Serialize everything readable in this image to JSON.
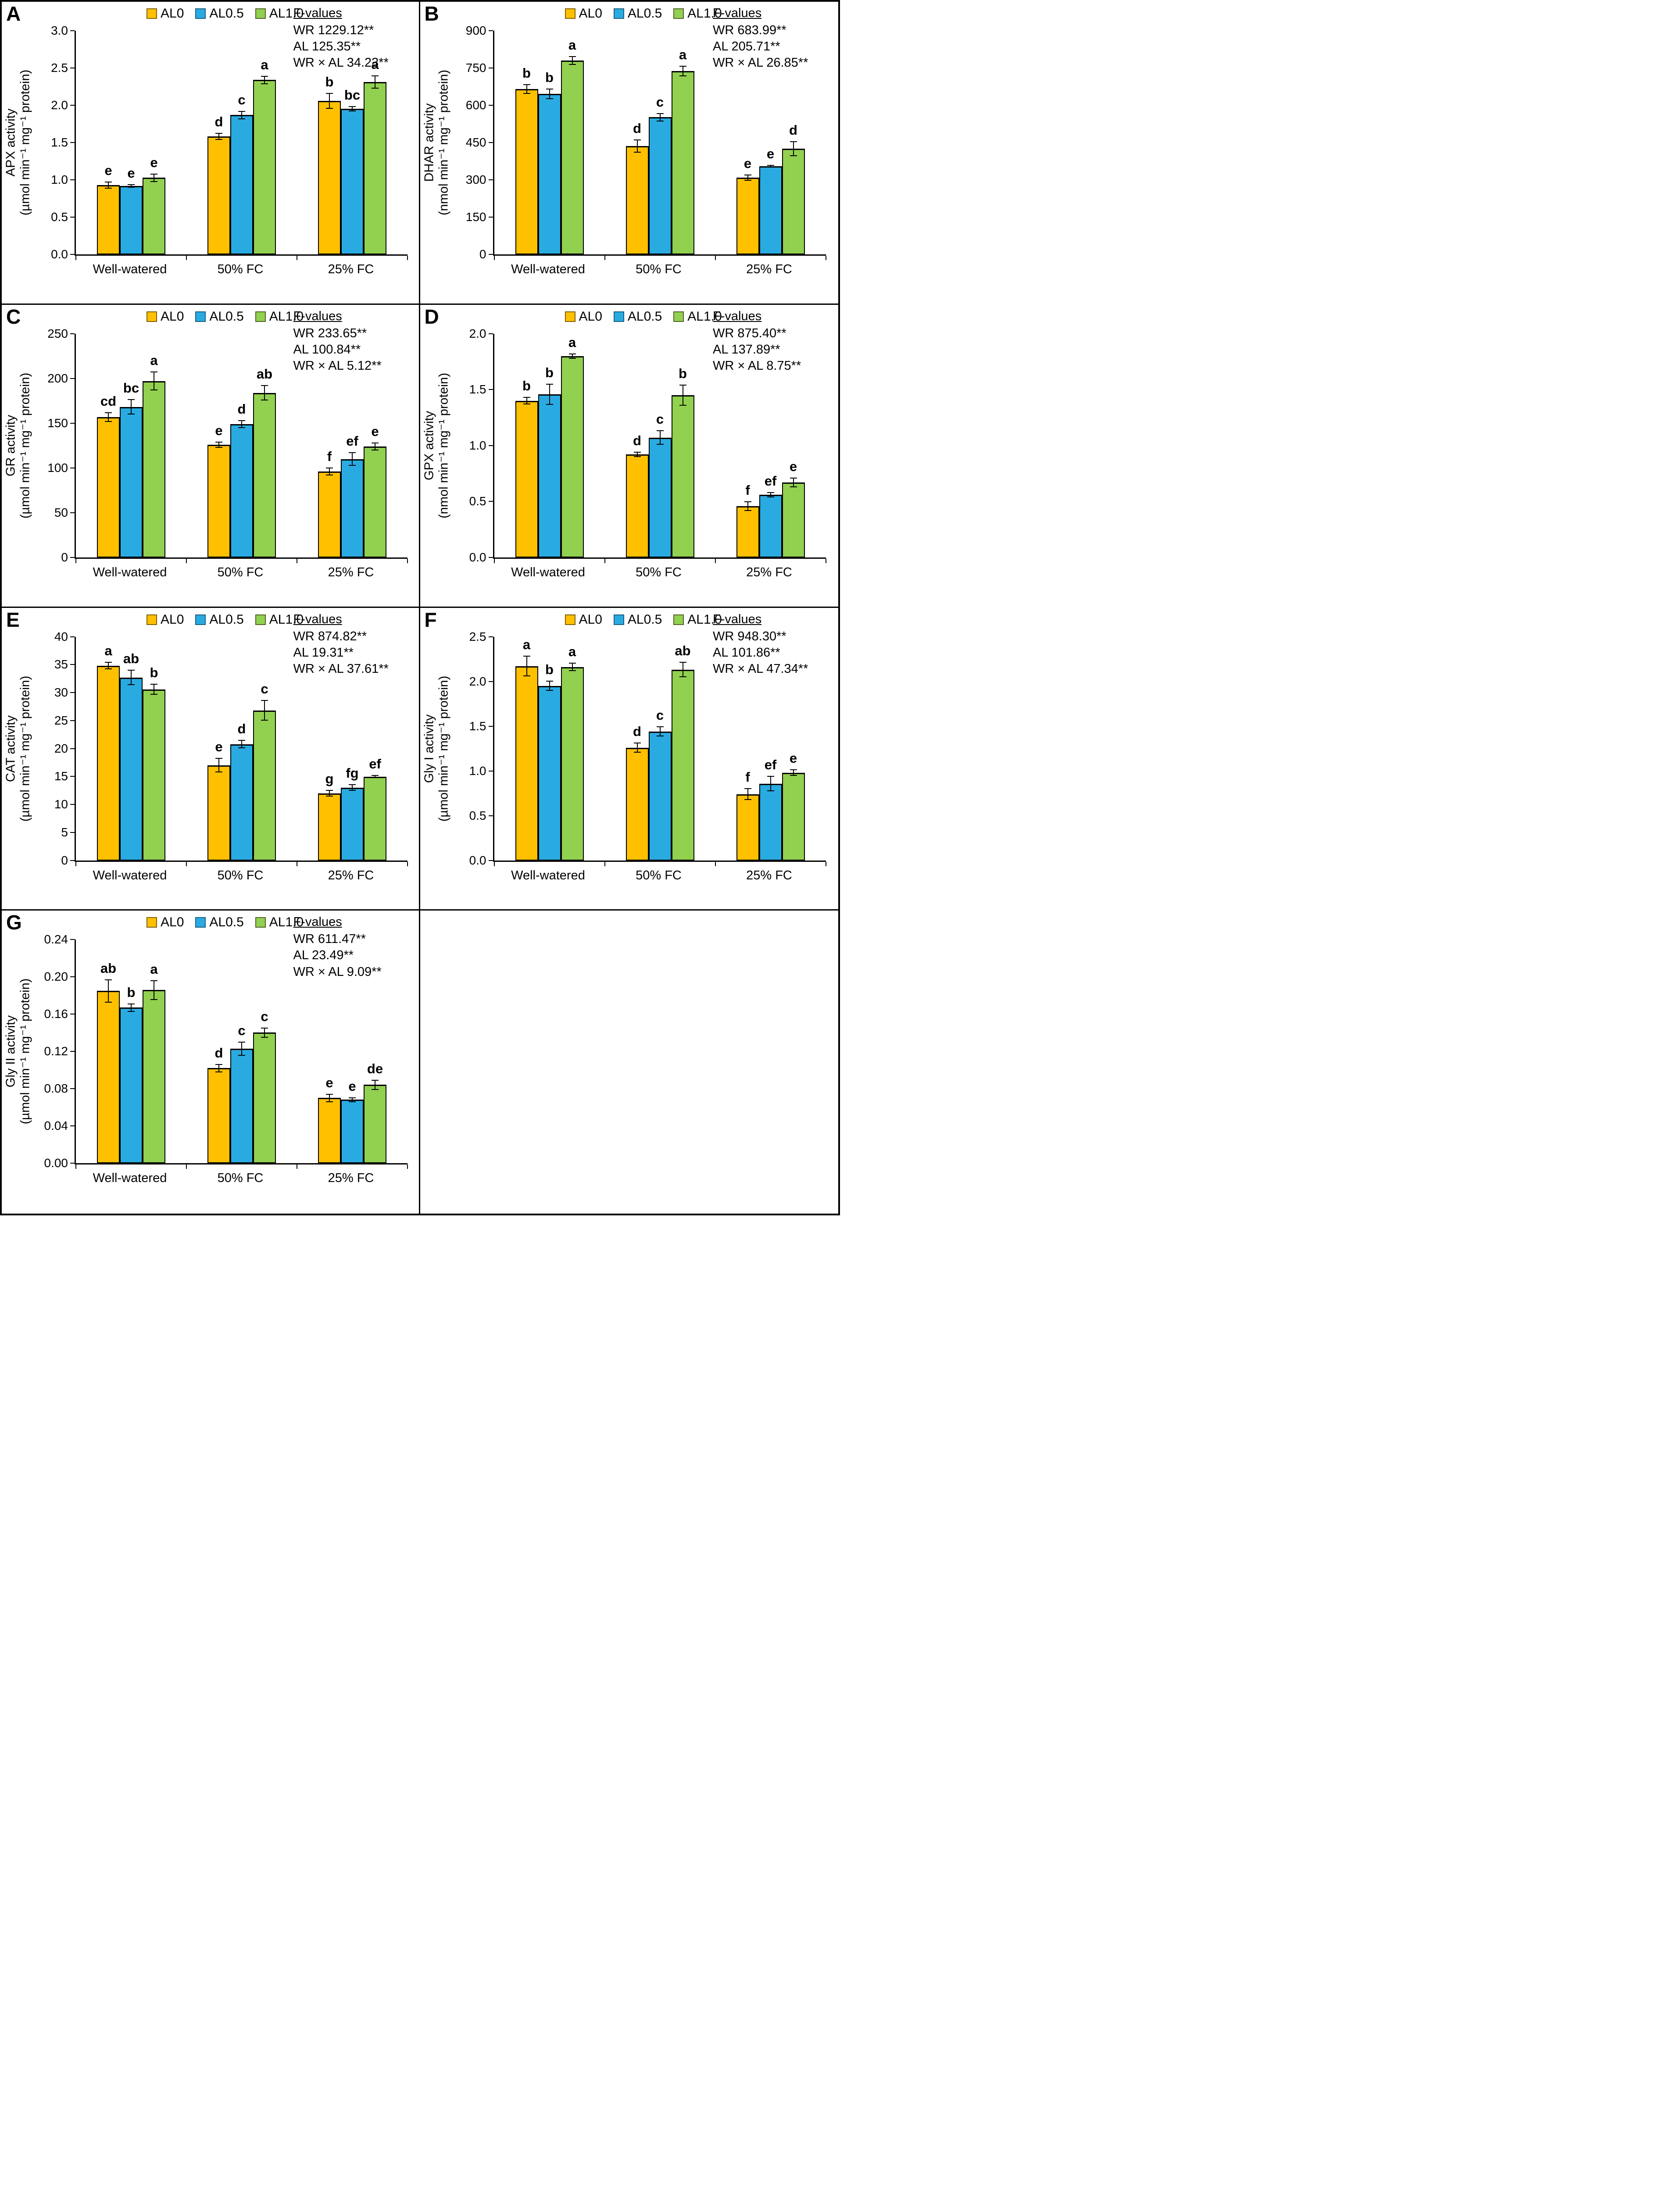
{
  "figure": {
    "f_title": "F-values",
    "categories": [
      "Well-watered",
      "50% FC",
      "25% FC"
    ],
    "legend": [
      {
        "label": "AL0",
        "color": "#FFC000",
        "border": "#7F6000"
      },
      {
        "label": "AL0.5",
        "color": "#29ABE2",
        "border": "#1B5E7F"
      },
      {
        "label": "AL1.0",
        "color": "#92D050",
        "border": "#4F6228"
      }
    ],
    "colors": {
      "bar_outline": "#000000",
      "axis": "#000000",
      "background": "#FFFFFF"
    }
  },
  "chart_data": {
    "type": "bar",
    "categories": [
      "Well-watered",
      "50% FC",
      "25% FC"
    ],
    "series_names": [
      "AL0",
      "AL0.5",
      "AL1.0"
    ],
    "legend_position": "top-center",
    "grid": false,
    "panels": [
      {
        "id": "A",
        "ylabel_line1": "APX activity",
        "ylabel_line2": "(µmol min⁻¹ mg⁻¹ protein)",
        "ymax": 3.0,
        "yticks": [
          "0.0",
          "0.5",
          "1.0",
          "1.5",
          "2.0",
          "2.5",
          "3.0"
        ],
        "f_lines": [
          "WR 1229.12**",
          "AL 125.35**",
          "WR × AL 34.23**"
        ],
        "series": [
          {
            "name": "AL0",
            "values": [
              0.93,
              1.58,
              2.06
            ],
            "errors": [
              0.04,
              0.04,
              0.1
            ],
            "letters": [
              "e",
              "d",
              "b"
            ]
          },
          {
            "name": "AL0.5",
            "values": [
              0.92,
              1.87,
              1.95
            ],
            "errors": [
              0.02,
              0.05,
              0.03
            ],
            "letters": [
              "e",
              "c",
              "bc"
            ]
          },
          {
            "name": "AL1.0",
            "values": [
              1.03,
              2.34,
              2.31
            ],
            "errors": [
              0.05,
              0.05,
              0.08
            ],
            "letters": [
              "e",
              "a",
              "a"
            ]
          }
        ]
      },
      {
        "id": "B",
        "ylabel_line1": "DHAR activity",
        "ylabel_line2": "(nmol min⁻¹ mg⁻¹ protein)",
        "ymax": 900,
        "yticks": [
          "0",
          "150",
          "300",
          "450",
          "600",
          "750",
          "900"
        ],
        "f_lines": [
          "WR 683.99**",
          "AL 205.71**",
          "WR × AL 26.85**"
        ],
        "series": [
          {
            "name": "AL0",
            "values": [
              665,
              435,
              308
            ],
            "errors": [
              18,
              25,
              10
            ],
            "letters": [
              "b",
              "d",
              "e"
            ]
          },
          {
            "name": "AL0.5",
            "values": [
              645,
              553,
              355
            ],
            "errors": [
              20,
              15,
              4
            ],
            "letters": [
              "b",
              "c",
              "e"
            ]
          },
          {
            "name": "AL1.0",
            "values": [
              780,
              737,
              425
            ],
            "errors": [
              16,
              20,
              28
            ],
            "letters": [
              "a",
              "a",
              "d"
            ]
          }
        ]
      },
      {
        "id": "C",
        "ylabel_line1": "GR activity",
        "ylabel_line2": "(µmol min⁻¹ mg⁻¹ protein)",
        "ymax": 250,
        "yticks": [
          "0",
          "50",
          "100",
          "150",
          "200",
          "250"
        ],
        "f_lines": [
          "WR 233.65**",
          "AL 100.84**",
          "WR × AL 5.12**"
        ],
        "series": [
          {
            "name": "AL0",
            "values": [
              157,
              126,
              96
            ],
            "errors": [
              5,
              3,
              4
            ],
            "letters": [
              "cd",
              "e",
              "f"
            ]
          },
          {
            "name": "AL0.5",
            "values": [
              168,
              149,
              110
            ],
            "errors": [
              8,
              4,
              7
            ],
            "letters": [
              "bc",
              "d",
              "ef"
            ]
          },
          {
            "name": "AL1.0",
            "values": [
              197,
              184,
              124
            ],
            "errors": [
              10,
              8,
              4
            ],
            "letters": [
              "a",
              "ab",
              "e"
            ]
          }
        ]
      },
      {
        "id": "D",
        "ylabel_line1": "GPX activity",
        "ylabel_line2": "(nmol min⁻¹ mg⁻¹ protein)",
        "ymax": 2.0,
        "yticks": [
          "0.0",
          "0.5",
          "1.0",
          "1.5",
          "2.0"
        ],
        "f_lines": [
          "WR 875.40**",
          "AL 137.89**",
          "WR × AL 8.75**"
        ],
        "series": [
          {
            "name": "AL0",
            "values": [
              1.4,
              0.92,
              0.46
            ],
            "errors": [
              0.03,
              0.02,
              0.04
            ],
            "letters": [
              "b",
              "d",
              "f"
            ]
          },
          {
            "name": "AL0.5",
            "values": [
              1.46,
              1.07,
              0.56
            ],
            "errors": [
              0.09,
              0.06,
              0.02
            ],
            "letters": [
              "b",
              "c",
              "ef"
            ]
          },
          {
            "name": "AL1.0",
            "values": [
              1.8,
              1.45,
              0.67
            ],
            "errors": [
              0.02,
              0.09,
              0.04
            ],
            "letters": [
              "a",
              "b",
              "e"
            ]
          }
        ]
      },
      {
        "id": "E",
        "ylabel_line1": "CAT activity",
        "ylabel_line2": "(µmol min⁻¹ mg⁻¹ protein)",
        "ymax": 40,
        "yticks": [
          "0",
          "5",
          "10",
          "15",
          "20",
          "25",
          "30",
          "35",
          "40"
        ],
        "f_lines": [
          "WR 874.82**",
          "AL 19.31**",
          "WR × AL 37.61**"
        ],
        "series": [
          {
            "name": "AL0",
            "values": [
              34.8,
              17.0,
              12.0
            ],
            "errors": [
              0.6,
              1.2,
              0.5
            ],
            "letters": [
              "a",
              "e",
              "g"
            ]
          },
          {
            "name": "AL0.5",
            "values": [
              32.7,
              20.8,
              13.0
            ],
            "errors": [
              1.3,
              0.7,
              0.5
            ],
            "letters": [
              "ab",
              "d",
              "fg"
            ]
          },
          {
            "name": "AL1.0",
            "values": [
              30.6,
              26.8,
              15.0
            ],
            "errors": [
              0.9,
              1.8,
              0.2
            ],
            "letters": [
              "b",
              "c",
              "ef"
            ]
          }
        ]
      },
      {
        "id": "F",
        "ylabel_line1": "Gly I activity",
        "ylabel_line2": "(µmol min⁻¹ mg⁻¹ protein)",
        "ymax": 2.5,
        "yticks": [
          "0.0",
          "0.5",
          "1.0",
          "1.5",
          "2.0",
          "2.5"
        ],
        "f_lines": [
          "WR 948.30**",
          "AL 101.86**",
          "WR × AL 47.34**"
        ],
        "series": [
          {
            "name": "AL0",
            "values": [
              2.17,
              1.26,
              0.74
            ],
            "errors": [
              0.11,
              0.05,
              0.06
            ],
            "letters": [
              "a",
              "d",
              "f"
            ]
          },
          {
            "name": "AL0.5",
            "values": [
              1.95,
              1.44,
              0.86
            ],
            "errors": [
              0.05,
              0.05,
              0.08
            ],
            "letters": [
              "b",
              "c",
              "ef"
            ]
          },
          {
            "name": "AL1.0",
            "values": [
              2.16,
              2.13,
              0.98
            ],
            "errors": [
              0.04,
              0.08,
              0.03
            ],
            "letters": [
              "a",
              "ab",
              "e"
            ]
          }
        ]
      },
      {
        "id": "G",
        "ylabel_line1": "Gly II activity",
        "ylabel_line2": "(µmol min⁻¹ mg⁻¹ protein)",
        "ymax": 0.24,
        "yticks": [
          "0.00",
          "0.04",
          "0.08",
          "0.12",
          "0.16",
          "0.20",
          "0.24"
        ],
        "f_lines": [
          "WR 611.47**",
          "AL 23.49**",
          "WR × AL 9.09**"
        ],
        "series": [
          {
            "name": "AL0",
            "values": [
              0.185,
              0.102,
              0.07
            ],
            "errors": [
              0.012,
              0.004,
              0.004
            ],
            "letters": [
              "ab",
              "d",
              "e"
            ]
          },
          {
            "name": "AL0.5",
            "values": [
              0.167,
              0.123,
              0.068
            ],
            "errors": [
              0.004,
              0.007,
              0.002
            ],
            "letters": [
              "b",
              "c",
              "e"
            ]
          },
          {
            "name": "AL1.0",
            "values": [
              0.186,
              0.14,
              0.084
            ],
            "errors": [
              0.01,
              0.005,
              0.005
            ],
            "letters": [
              "a",
              "c",
              "de"
            ]
          }
        ]
      }
    ]
  }
}
